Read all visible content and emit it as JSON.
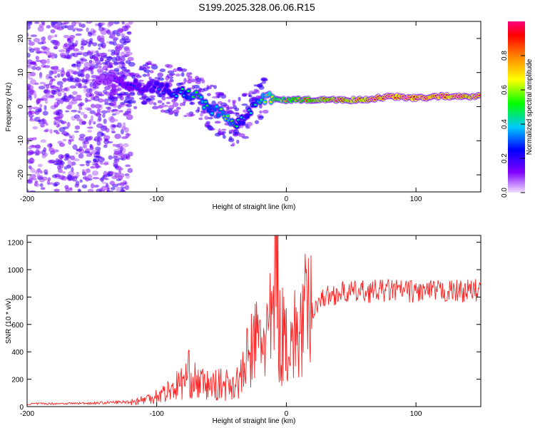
{
  "title": "S199.2025.328.06.06.R15",
  "chart_data": [
    {
      "type": "heatmap",
      "xlabel": "Height of straight line (km)",
      "ylabel": "Frequency (Hz)",
      "xlim": [
        -200,
        150
      ],
      "ylim": [
        -25,
        25
      ],
      "xticks": [
        -200,
        -100,
        0,
        100
      ],
      "yticks": [
        -20,
        -10,
        0,
        10,
        20
      ],
      "colorbar": {
        "label": "Normalized spectral amplitude",
        "range": [
          0,
          1
        ],
        "ticks": [
          "0.0",
          "0.2",
          "0.4",
          "0.6",
          "0.8"
        ],
        "colors": [
          "#f0e0ff",
          "#8000ff",
          "#0000ff",
          "#00c8ff",
          "#00ff00",
          "#ffff00",
          "#ff8000",
          "#ff0000",
          "#ff0080"
        ]
      },
      "ridge": {
        "x": [
          -145,
          -130,
          -115,
          -100,
          -90,
          -80,
          -70,
          -60,
          -50,
          -45,
          -40,
          -35,
          -30,
          -25,
          -20,
          -15,
          -10,
          0,
          10,
          30,
          60,
          80,
          100,
          120,
          150
        ],
        "freq": [
          8,
          7,
          6,
          6,
          5,
          4,
          3,
          0,
          -2,
          -4,
          -5,
          -4,
          -2,
          0,
          2,
          3,
          2,
          2,
          2,
          2,
          2,
          3,
          2.5,
          3,
          3
        ],
        "amplitude": [
          0.1,
          0.15,
          0.2,
          0.25,
          0.3,
          0.35,
          0.45,
          0.4,
          0.45,
          0.5,
          0.4,
          0.3,
          0.3,
          0.35,
          0.45,
          0.55,
          0.65,
          0.7,
          0.75,
          0.85,
          0.9,
          0.95,
          0.95,
          0.95,
          0.9
        ]
      },
      "noise_region": {
        "x": [
          -200,
          -130
        ],
        "freq": [
          -25,
          25
        ],
        "amplitude": [
          0.05,
          0.2
        ]
      }
    },
    {
      "type": "line",
      "xlabel": "Height of straight line (km)",
      "ylabel": "SNR (10 * v/v)",
      "xlim": [
        -200,
        150
      ],
      "ylim": [
        0,
        1250
      ],
      "xticks": [
        -200,
        -100,
        0,
        100
      ],
      "yticks": [
        0,
        200,
        400,
        600,
        800,
        1000,
        1200
      ],
      "color": "#ff2020",
      "x": [
        -200,
        -150,
        -120,
        -110,
        -100,
        -90,
        -80,
        -75,
        -70,
        -60,
        -50,
        -40,
        -35,
        -30,
        -25,
        -20,
        -15,
        -10,
        -8,
        -5,
        0,
        5,
        10,
        15,
        20,
        25,
        30,
        40,
        60,
        80,
        100,
        120,
        150
      ],
      "y": [
        20,
        25,
        35,
        50,
        80,
        120,
        180,
        240,
        180,
        150,
        160,
        170,
        200,
        350,
        450,
        500,
        520,
        600,
        1250,
        500,
        550,
        480,
        550,
        650,
        700,
        770,
        800,
        830,
        840,
        850,
        840,
        840,
        850
      ]
    }
  ]
}
